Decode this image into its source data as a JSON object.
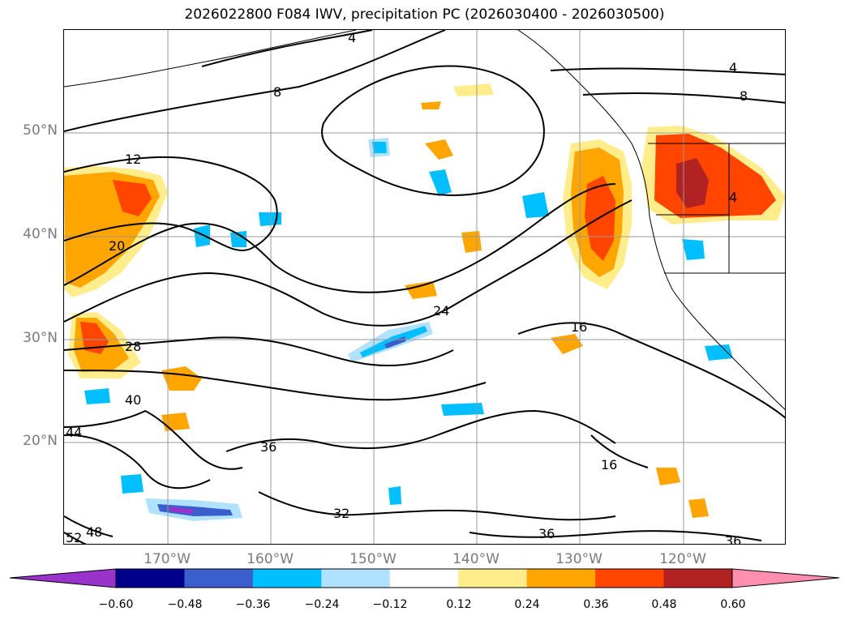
{
  "title": "2026022800 F084 IWV, precipitation PC (2026030400 - 2026030500)",
  "lat_labels": [
    "50°N",
    "40°N",
    "30°N",
    "20°N"
  ],
  "lon_labels": [
    "170°W",
    "160°W",
    "150°W",
    "140°W",
    "130°W",
    "120°W"
  ],
  "contour_labels": [
    "4",
    "8",
    "12",
    "20",
    "28",
    "40",
    "44",
    "36",
    "32",
    "24",
    "16",
    "16",
    "36",
    "36",
    "52",
    "48",
    "4",
    "8",
    "4"
  ],
  "colorbar": {
    "ticks": [
      "−0.60",
      "−0.48",
      "−0.36",
      "−0.24",
      "−0.12",
      "0.12",
      "0.24",
      "0.36",
      "0.48",
      "0.60"
    ],
    "colors": [
      "#9933cc",
      "#00008b",
      "#3a5fcd",
      "#00bfff",
      "#b0e2ff",
      "#ffffff",
      "#ffec8b",
      "#ffa500",
      "#ff4500",
      "#b22222",
      "#ff8fb0"
    ]
  }
}
